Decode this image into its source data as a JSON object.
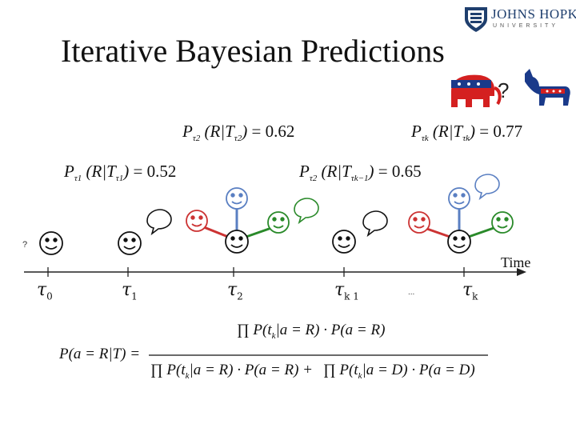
{
  "slide": {
    "title": "Iterative Bayesian Predictions",
    "logo": {
      "name": "JOHNS HOPKINS",
      "sub": "UNIVERSITY"
    },
    "question_mark": "?",
    "equations": {
      "e_tau1": {
        "lhs": "P",
        "sub": "τ1",
        "mid": "(R|T",
        "msub": "τ1",
        "close": ")",
        "rhs": "= 0.52"
      },
      "e_tau2a": {
        "lhs": "P",
        "sub": "τ2",
        "mid": "(R|T",
        "msub": "τ2",
        "close": ")",
        "rhs": "= 0.62"
      },
      "e_tau2b": {
        "lhs": "P",
        "sub": "τ2",
        "mid": "(R|T",
        "msub": "τk−1",
        "close": ")",
        "rhs": "= 0.65"
      },
      "e_tauk": {
        "lhs": "P",
        "sub": "τk",
        "mid": "(R|T",
        "msub": "τk",
        "close": ")",
        "rhs": "= 0.77"
      }
    },
    "timeline": {
      "axis_label": "Time",
      "start_mark": "?",
      "ellipsis": "...",
      "ticks": [
        {
          "symbol": "τ",
          "sub": "0"
        },
        {
          "symbol": "τ",
          "sub": "1"
        },
        {
          "symbol": "τ",
          "sub": "2"
        },
        {
          "symbol": "τ",
          "sub": "k 1"
        },
        {
          "symbol": "τ",
          "sub": "k"
        }
      ]
    },
    "formula": {
      "lhs": "P(a = R|T) =",
      "numerator": "∏ P(t",
      "numerator_rest": "|a = R) · P(a = R)",
      "numerator_sub": "k",
      "den_left": "∏ P(t",
      "den_left_rest": "|a = R) · P(a = R) +",
      "den_right": "∏ P(t",
      "den_right_rest": "|a = D) · P(a = D)",
      "den_sub": "k"
    },
    "colors": {
      "red_party": "#d42020",
      "blue_party": "#1a3a8a",
      "green_edge": "#2a8a2a",
      "blue_edge": "#5a7fc2",
      "red_edge": "#cc3333"
    }
  }
}
